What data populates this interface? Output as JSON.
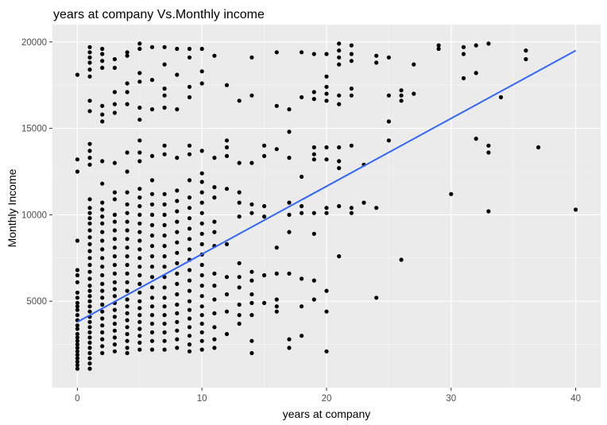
{
  "chart_data": {
    "type": "scatter",
    "title": "years at company Vs.Monthly income",
    "xlabel": "years at company",
    "ylabel": "Monthly Income",
    "xlim": [
      -2,
      42
    ],
    "ylim": [
      0,
      21000
    ],
    "x_ticks": [
      0,
      10,
      20,
      30,
      40
    ],
    "y_ticks": [
      5000,
      10000,
      15000,
      20000
    ],
    "grid": true,
    "legend": "none",
    "trend_line": {
      "x": [
        0,
        40
      ],
      "y": [
        3800,
        19500
      ],
      "color": "#3366ff"
    },
    "colors": {
      "panel": "#ebebeb",
      "grid_major": "#ffffff",
      "grid_minor": "#f5f5f5",
      "points": "#000000",
      "tick_text": "#4d4d4d"
    },
    "points": [
      [
        0,
        18100
      ],
      [
        0,
        13200
      ],
      [
        0,
        12500
      ],
      [
        0,
        8500
      ],
      [
        0,
        6800
      ],
      [
        0,
        6500
      ],
      [
        0,
        6100
      ],
      [
        0,
        5500
      ],
      [
        0,
        5200
      ],
      [
        0,
        4900
      ],
      [
        0,
        4700
      ],
      [
        0,
        4500
      ],
      [
        0,
        4200
      ],
      [
        0,
        3900
      ],
      [
        0,
        3600
      ],
      [
        0,
        3400
      ],
      [
        0,
        3100
      ],
      [
        0,
        2900
      ],
      [
        0,
        2700
      ],
      [
        0,
        2500
      ],
      [
        0,
        2300
      ],
      [
        0,
        2100
      ],
      [
        0,
        1900
      ],
      [
        0,
        1700
      ],
      [
        0,
        1500
      ],
      [
        0,
        1300
      ],
      [
        0,
        1100
      ],
      [
        1,
        19700
      ],
      [
        1,
        19400
      ],
      [
        1,
        19100
      ],
      [
        1,
        18800
      ],
      [
        1,
        18400
      ],
      [
        1,
        18000
      ],
      [
        1,
        16600
      ],
      [
        1,
        16000
      ],
      [
        1,
        14100
      ],
      [
        1,
        13700
      ],
      [
        1,
        13300
      ],
      [
        1,
        12900
      ],
      [
        1,
        10900
      ],
      [
        1,
        10400
      ],
      [
        1,
        10100
      ],
      [
        1,
        9800
      ],
      [
        1,
        9500
      ],
      [
        1,
        9100
      ],
      [
        1,
        8700
      ],
      [
        1,
        8300
      ],
      [
        1,
        7900
      ],
      [
        1,
        7500
      ],
      [
        1,
        7100
      ],
      [
        1,
        6700
      ],
      [
        1,
        6300
      ],
      [
        1,
        5900
      ],
      [
        1,
        5600
      ],
      [
        1,
        5300
      ],
      [
        1,
        5000
      ],
      [
        1,
        4700
      ],
      [
        1,
        4400
      ],
      [
        1,
        4100
      ],
      [
        1,
        3800
      ],
      [
        1,
        3500
      ],
      [
        1,
        3200
      ],
      [
        1,
        2900
      ],
      [
        1,
        2600
      ],
      [
        1,
        2300
      ],
      [
        1,
        2000
      ],
      [
        1,
        1700
      ],
      [
        1,
        1400
      ],
      [
        1,
        1100
      ],
      [
        2,
        19600
      ],
      [
        2,
        19300
      ],
      [
        2,
        18900
      ],
      [
        2,
        18500
      ],
      [
        2,
        16300
      ],
      [
        2,
        15800
      ],
      [
        2,
        15400
      ],
      [
        2,
        13100
      ],
      [
        2,
        11800
      ],
      [
        2,
        10700
      ],
      [
        2,
        10300
      ],
      [
        2,
        9900
      ],
      [
        2,
        9500
      ],
      [
        2,
        9000
      ],
      [
        2,
        8500
      ],
      [
        2,
        8000
      ],
      [
        2,
        7500
      ],
      [
        2,
        7000
      ],
      [
        2,
        6500
      ],
      [
        2,
        6000
      ],
      [
        2,
        5600
      ],
      [
        2,
        5200
      ],
      [
        2,
        4800
      ],
      [
        2,
        4400
      ],
      [
        2,
        4000
      ],
      [
        2,
        3600
      ],
      [
        2,
        3200
      ],
      [
        2,
        2800
      ],
      [
        2,
        2400
      ],
      [
        2,
        2000
      ],
      [
        3,
        19000
      ],
      [
        3,
        18500
      ],
      [
        3,
        17100
      ],
      [
        3,
        16400
      ],
      [
        3,
        15900
      ],
      [
        3,
        13000
      ],
      [
        3,
        11300
      ],
      [
        3,
        10900
      ],
      [
        3,
        10000
      ],
      [
        3,
        9600
      ],
      [
        3,
        9100
      ],
      [
        3,
        8600
      ],
      [
        3,
        8100
      ],
      [
        3,
        7600
      ],
      [
        3,
        7100
      ],
      [
        3,
        6600
      ],
      [
        3,
        6100
      ],
      [
        3,
        5700
      ],
      [
        3,
        5300
      ],
      [
        3,
        4900
      ],
      [
        3,
        4500
      ],
      [
        3,
        4100
      ],
      [
        3,
        3700
      ],
      [
        3,
        3300
      ],
      [
        3,
        2900
      ],
      [
        3,
        2500
      ],
      [
        3,
        2100
      ],
      [
        4,
        19400
      ],
      [
        4,
        19200
      ],
      [
        4,
        17600
      ],
      [
        4,
        17100
      ],
      [
        4,
        16400
      ],
      [
        4,
        13600
      ],
      [
        4,
        12500
      ],
      [
        4,
        11300
      ],
      [
        4,
        10600
      ],
      [
        4,
        10100
      ],
      [
        4,
        9600
      ],
      [
        4,
        9100
      ],
      [
        4,
        8600
      ],
      [
        4,
        8100
      ],
      [
        4,
        7600
      ],
      [
        4,
        7100
      ],
      [
        4,
        6600
      ],
      [
        4,
        6100
      ],
      [
        4,
        5600
      ],
      [
        4,
        5100
      ],
      [
        4,
        4700
      ],
      [
        4,
        4300
      ],
      [
        4,
        3900
      ],
      [
        4,
        3500
      ],
      [
        4,
        3100
      ],
      [
        4,
        2700
      ],
      [
        4,
        2300
      ],
      [
        4,
        2000
      ],
      [
        5,
        19900
      ],
      [
        5,
        19600
      ],
      [
        5,
        18200
      ],
      [
        5,
        17700
      ],
      [
        5,
        16200
      ],
      [
        5,
        15500
      ],
      [
        5,
        14300
      ],
      [
        5,
        13600
      ],
      [
        5,
        13100
      ],
      [
        5,
        11500
      ],
      [
        5,
        11000
      ],
      [
        5,
        10500
      ],
      [
        5,
        10000
      ],
      [
        5,
        9500
      ],
      [
        5,
        9000
      ],
      [
        5,
        8500
      ],
      [
        5,
        8000
      ],
      [
        5,
        7500
      ],
      [
        5,
        7000
      ],
      [
        5,
        6500
      ],
      [
        5,
        6000
      ],
      [
        5,
        5500
      ],
      [
        5,
        5000
      ],
      [
        5,
        4600
      ],
      [
        5,
        4200
      ],
      [
        5,
        3800
      ],
      [
        5,
        3400
      ],
      [
        5,
        3000
      ],
      [
        5,
        2600
      ],
      [
        5,
        2200
      ],
      [
        6,
        19700
      ],
      [
        6,
        17800
      ],
      [
        6,
        16100
      ],
      [
        6,
        13400
      ],
      [
        6,
        12000
      ],
      [
        6,
        11200
      ],
      [
        6,
        10600
      ],
      [
        6,
        10000
      ],
      [
        6,
        9400
      ],
      [
        6,
        8800
      ],
      [
        6,
        8200
      ],
      [
        6,
        7600
      ],
      [
        6,
        7000
      ],
      [
        6,
        6400
      ],
      [
        6,
        5800
      ],
      [
        6,
        5200
      ],
      [
        6,
        4700
      ],
      [
        6,
        4200
      ],
      [
        6,
        3700
      ],
      [
        6,
        3200
      ],
      [
        6,
        2700
      ],
      [
        6,
        2200
      ],
      [
        7,
        19700
      ],
      [
        7,
        18700
      ],
      [
        7,
        17300
      ],
      [
        7,
        16900
      ],
      [
        7,
        16200
      ],
      [
        7,
        14000
      ],
      [
        7,
        13500
      ],
      [
        7,
        11200
      ],
      [
        7,
        10600
      ],
      [
        7,
        10000
      ],
      [
        7,
        9400
      ],
      [
        7,
        8800
      ],
      [
        7,
        8200
      ],
      [
        7,
        7600
      ],
      [
        7,
        7000
      ],
      [
        7,
        6400
      ],
      [
        7,
        5800
      ],
      [
        7,
        5200
      ],
      [
        7,
        4700
      ],
      [
        7,
        4200
      ],
      [
        7,
        3700
      ],
      [
        7,
        3200
      ],
      [
        7,
        2700
      ],
      [
        7,
        2200
      ],
      [
        8,
        19600
      ],
      [
        8,
        18100
      ],
      [
        8,
        16100
      ],
      [
        8,
        13300
      ],
      [
        8,
        11400
      ],
      [
        8,
        10800
      ],
      [
        8,
        10200
      ],
      [
        8,
        9600
      ],
      [
        8,
        9000
      ],
      [
        8,
        8400
      ],
      [
        8,
        7800
      ],
      [
        8,
        7200
      ],
      [
        8,
        6600
      ],
      [
        8,
        6000
      ],
      [
        8,
        5400
      ],
      [
        8,
        4800
      ],
      [
        8,
        4300
      ],
      [
        8,
        3800
      ],
      [
        8,
        3300
      ],
      [
        8,
        2800
      ],
      [
        8,
        2300
      ],
      [
        9,
        19600
      ],
      [
        9,
        19100
      ],
      [
        9,
        17400
      ],
      [
        9,
        16800
      ],
      [
        9,
        14000
      ],
      [
        9,
        13500
      ],
      [
        9,
        12000
      ],
      [
        9,
        11000
      ],
      [
        9,
        10400
      ],
      [
        9,
        9800
      ],
      [
        9,
        9200
      ],
      [
        9,
        8600
      ],
      [
        9,
        8000
      ],
      [
        9,
        7400
      ],
      [
        9,
        6800
      ],
      [
        9,
        6200
      ],
      [
        9,
        5600
      ],
      [
        9,
        5000
      ],
      [
        9,
        4500
      ],
      [
        9,
        4000
      ],
      [
        9,
        3500
      ],
      [
        9,
        3000
      ],
      [
        9,
        2500
      ],
      [
        9,
        2100
      ],
      [
        10,
        19600
      ],
      [
        10,
        18300
      ],
      [
        10,
        17600
      ],
      [
        10,
        13700
      ],
      [
        10,
        12400
      ],
      [
        10,
        11900
      ],
      [
        10,
        11300
      ],
      [
        10,
        10700
      ],
      [
        10,
        10100
      ],
      [
        10,
        9500
      ],
      [
        10,
        8900
      ],
      [
        10,
        8300
      ],
      [
        10,
        7700
      ],
      [
        10,
        7100
      ],
      [
        10,
        6500
      ],
      [
        10,
        5900
      ],
      [
        10,
        5300
      ],
      [
        10,
        4700
      ],
      [
        10,
        4200
      ],
      [
        10,
        3700
      ],
      [
        10,
        3200
      ],
      [
        10,
        2700
      ],
      [
        10,
        2200
      ],
      [
        11,
        19200
      ],
      [
        11,
        13300
      ],
      [
        11,
        11600
      ],
      [
        11,
        11000
      ],
      [
        11,
        9600
      ],
      [
        11,
        9000
      ],
      [
        11,
        8200
      ],
      [
        11,
        6600
      ],
      [
        11,
        5900
      ],
      [
        11,
        5100
      ],
      [
        11,
        4300
      ],
      [
        11,
        3500
      ],
      [
        11,
        2800
      ],
      [
        11,
        2300
      ],
      [
        12,
        17500
      ],
      [
        12,
        14300
      ],
      [
        12,
        13900
      ],
      [
        12,
        13400
      ],
      [
        12,
        11500
      ],
      [
        12,
        8300
      ],
      [
        12,
        6400
      ],
      [
        12,
        5400
      ],
      [
        12,
        4400
      ],
      [
        12,
        3100
      ],
      [
        13,
        16600
      ],
      [
        13,
        13000
      ],
      [
        13,
        11300
      ],
      [
        13,
        10700
      ],
      [
        13,
        9900
      ],
      [
        13,
        7200
      ],
      [
        13,
        6400
      ],
      [
        13,
        5800
      ],
      [
        13,
        4800
      ],
      [
        13,
        4200
      ],
      [
        13,
        3700
      ],
      [
        14,
        19100
      ],
      [
        14,
        16900
      ],
      [
        14,
        13000
      ],
      [
        14,
        10600
      ],
      [
        14,
        10100
      ],
      [
        14,
        6700
      ],
      [
        14,
        6200
      ],
      [
        14,
        5400
      ],
      [
        14,
        4900
      ],
      [
        14,
        4200
      ],
      [
        14,
        2700
      ],
      [
        14,
        2000
      ],
      [
        15,
        14000
      ],
      [
        15,
        13400
      ],
      [
        15,
        10500
      ],
      [
        15,
        9900
      ],
      [
        15,
        6500
      ],
      [
        15,
        4900
      ],
      [
        16,
        19400
      ],
      [
        16,
        16300
      ],
      [
        16,
        13800
      ],
      [
        16,
        8100
      ],
      [
        16,
        6600
      ],
      [
        16,
        5100
      ],
      [
        16,
        4700
      ],
      [
        16,
        4400
      ],
      [
        17,
        16100
      ],
      [
        17,
        14800
      ],
      [
        17,
        13300
      ],
      [
        17,
        10700
      ],
      [
        17,
        10000
      ],
      [
        17,
        9000
      ],
      [
        17,
        6600
      ],
      [
        17,
        2800
      ],
      [
        17,
        2300
      ],
      [
        18,
        19400
      ],
      [
        18,
        16800
      ],
      [
        18,
        12200
      ],
      [
        18,
        10500
      ],
      [
        18,
        10100
      ],
      [
        18,
        6300
      ],
      [
        18,
        4700
      ],
      [
        18,
        3000
      ],
      [
        19,
        19300
      ],
      [
        19,
        17100
      ],
      [
        19,
        16700
      ],
      [
        19,
        13900
      ],
      [
        19,
        13500
      ],
      [
        19,
        13200
      ],
      [
        19,
        10100
      ],
      [
        19,
        8900
      ],
      [
        19,
        6200
      ],
      [
        19,
        5100
      ],
      [
        20,
        19300
      ],
      [
        20,
        18000
      ],
      [
        20,
        17400
      ],
      [
        20,
        17000
      ],
      [
        20,
        16600
      ],
      [
        20,
        13900
      ],
      [
        20,
        13200
      ],
      [
        20,
        10400
      ],
      [
        20,
        10100
      ],
      [
        20,
        5600
      ],
      [
        20,
        4400
      ],
      [
        20,
        2100
      ],
      [
        21,
        19900
      ],
      [
        21,
        19500
      ],
      [
        21,
        19100
      ],
      [
        21,
        18700
      ],
      [
        21,
        16900
      ],
      [
        21,
        16400
      ],
      [
        21,
        13900
      ],
      [
        21,
        13100
      ],
      [
        21,
        12700
      ],
      [
        21,
        10500
      ],
      [
        21,
        7600
      ],
      [
        22,
        19800
      ],
      [
        22,
        19300
      ],
      [
        22,
        18900
      ],
      [
        22,
        17300
      ],
      [
        22,
        16900
      ],
      [
        22,
        14000
      ],
      [
        22,
        10400
      ],
      [
        22,
        10100
      ],
      [
        23,
        12900
      ],
      [
        23,
        10700
      ],
      [
        24,
        19200
      ],
      [
        24,
        18800
      ],
      [
        24,
        10400
      ],
      [
        24,
        5200
      ],
      [
        25,
        19100
      ],
      [
        25,
        16900
      ],
      [
        25,
        15400
      ],
      [
        25,
        14300
      ],
      [
        26,
        17200
      ],
      [
        26,
        16900
      ],
      [
        26,
        16600
      ],
      [
        26,
        7400
      ],
      [
        27,
        18700
      ],
      [
        27,
        17000
      ],
      [
        29,
        19800
      ],
      [
        29,
        19600
      ],
      [
        30,
        11200
      ],
      [
        31,
        19700
      ],
      [
        31,
        19300
      ],
      [
        31,
        17900
      ],
      [
        32,
        19800
      ],
      [
        32,
        18200
      ],
      [
        32,
        14400
      ],
      [
        33,
        19900
      ],
      [
        33,
        14000
      ],
      [
        33,
        13600
      ],
      [
        33,
        10200
      ],
      [
        34,
        16800
      ],
      [
        36,
        19500
      ],
      [
        36,
        19000
      ],
      [
        37,
        13900
      ],
      [
        40,
        10300
      ]
    ]
  }
}
